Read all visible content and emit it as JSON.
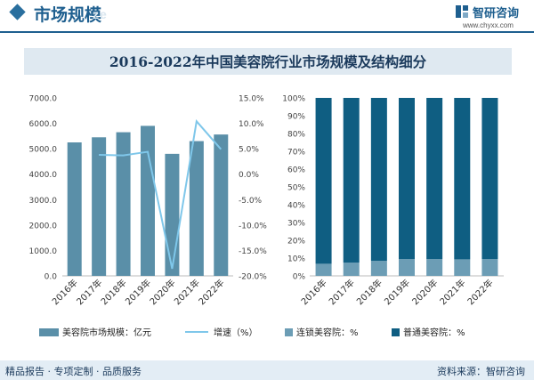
{
  "header": {
    "title": "市场规模",
    "watermark": "ze",
    "brand_name": "智研咨询",
    "brand_url": "www.chyxx.com"
  },
  "chart_title": "2016-2022年中国美容院行业市场规模及结构细分",
  "footer": {
    "left": "精品报告 · 专项定制 · 品质服务",
    "right": "资料来源：智研咨询"
  },
  "colors": {
    "bar": "#5a8fa8",
    "growth_line": "#7fc7ea",
    "chain": "#6c9db5",
    "ordinary": "#0f5e82",
    "brand": "#1e5f8f"
  },
  "chart_data": [
    {
      "type": "bar",
      "categories": [
        "2016年",
        "2017年",
        "2018年",
        "2019年",
        "2020年",
        "2021年",
        "2022年"
      ],
      "series": [
        {
          "name": "美容院市场规模：亿元",
          "axis": "left",
          "type": "bar",
          "values": [
            5250,
            5450,
            5650,
            5900,
            4800,
            5300,
            5560
          ]
        },
        {
          "name": "增速（%）",
          "axis": "right",
          "type": "line",
          "values": [
            null,
            3.8,
            3.7,
            4.4,
            -18.6,
            10.4,
            4.9
          ]
        }
      ],
      "left_axis": {
        "ylim": [
          0,
          7000
        ],
        "ticks": [
          "0.0",
          "1000.0",
          "2000.0",
          "3000.0",
          "4000.0",
          "5000.0",
          "6000.0",
          "7000.0"
        ]
      },
      "right_axis": {
        "ylim": [
          -20,
          15
        ],
        "ticks": [
          "-20.0%",
          "-15.0%",
          "-10.0%",
          "-5.0%",
          "0.0%",
          "5.0%",
          "10.0%",
          "15.0%"
        ]
      },
      "legend": [
        "美容院市场规模：亿元",
        "增速（%）"
      ],
      "legend_position": "bottom"
    },
    {
      "type": "bar",
      "stacked": true,
      "categories": [
        "2016年",
        "2017年",
        "2018年",
        "2019年",
        "2020年",
        "2021年",
        "2022年"
      ],
      "series": [
        {
          "name": "连锁美容院：%",
          "values": [
            6.8,
            7.5,
            8.5,
            9.5,
            9.5,
            9.3,
            9.5
          ]
        },
        {
          "name": "普通美容院：%",
          "values": [
            93.2,
            92.5,
            91.5,
            90.5,
            90.5,
            90.7,
            90.5
          ]
        }
      ],
      "ylim": [
        0,
        100
      ],
      "ticks": [
        "0%",
        "10%",
        "20%",
        "30%",
        "40%",
        "50%",
        "60%",
        "70%",
        "80%",
        "90%",
        "100%"
      ],
      "legend": [
        "连锁美容院：%",
        "普通美容院：%"
      ],
      "legend_position": "bottom"
    }
  ]
}
